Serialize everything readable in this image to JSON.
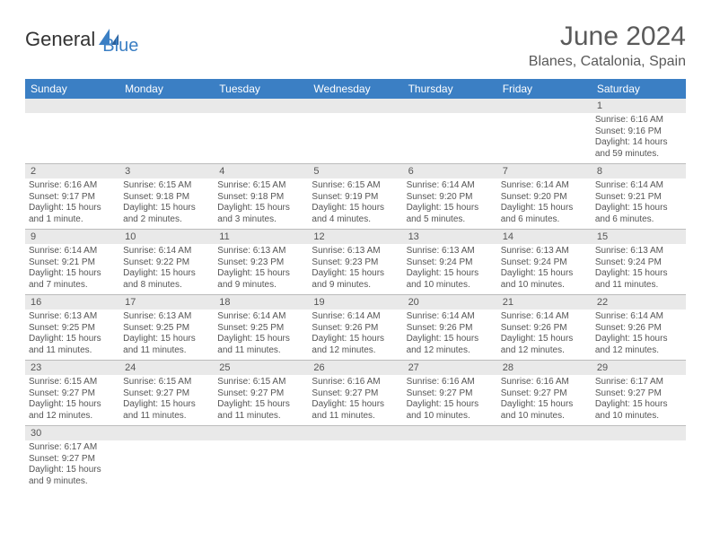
{
  "logo": {
    "general": "General",
    "blue": "Blue"
  },
  "title": "June 2024",
  "location": "Blanes, Catalonia, Spain",
  "colors": {
    "header_bg": "#3b7fc4",
    "header_text": "#ffffff",
    "daynum_bg": "#e9e9e9",
    "border": "#bcbcbc",
    "logo_blue": "#3b7fc4",
    "text": "#555555"
  },
  "dayNames": [
    "Sunday",
    "Monday",
    "Tuesday",
    "Wednesday",
    "Thursday",
    "Friday",
    "Saturday"
  ],
  "weeks": [
    [
      {
        "n": "",
        "lines": []
      },
      {
        "n": "",
        "lines": []
      },
      {
        "n": "",
        "lines": []
      },
      {
        "n": "",
        "lines": []
      },
      {
        "n": "",
        "lines": []
      },
      {
        "n": "",
        "lines": []
      },
      {
        "n": "1",
        "lines": [
          "Sunrise: 6:16 AM",
          "Sunset: 9:16 PM",
          "Daylight: 14 hours",
          "and 59 minutes."
        ]
      }
    ],
    [
      {
        "n": "2",
        "lines": [
          "Sunrise: 6:16 AM",
          "Sunset: 9:17 PM",
          "Daylight: 15 hours",
          "and 1 minute."
        ]
      },
      {
        "n": "3",
        "lines": [
          "Sunrise: 6:15 AM",
          "Sunset: 9:18 PM",
          "Daylight: 15 hours",
          "and 2 minutes."
        ]
      },
      {
        "n": "4",
        "lines": [
          "Sunrise: 6:15 AM",
          "Sunset: 9:18 PM",
          "Daylight: 15 hours",
          "and 3 minutes."
        ]
      },
      {
        "n": "5",
        "lines": [
          "Sunrise: 6:15 AM",
          "Sunset: 9:19 PM",
          "Daylight: 15 hours",
          "and 4 minutes."
        ]
      },
      {
        "n": "6",
        "lines": [
          "Sunrise: 6:14 AM",
          "Sunset: 9:20 PM",
          "Daylight: 15 hours",
          "and 5 minutes."
        ]
      },
      {
        "n": "7",
        "lines": [
          "Sunrise: 6:14 AM",
          "Sunset: 9:20 PM",
          "Daylight: 15 hours",
          "and 6 minutes."
        ]
      },
      {
        "n": "8",
        "lines": [
          "Sunrise: 6:14 AM",
          "Sunset: 9:21 PM",
          "Daylight: 15 hours",
          "and 6 minutes."
        ]
      }
    ],
    [
      {
        "n": "9",
        "lines": [
          "Sunrise: 6:14 AM",
          "Sunset: 9:21 PM",
          "Daylight: 15 hours",
          "and 7 minutes."
        ]
      },
      {
        "n": "10",
        "lines": [
          "Sunrise: 6:14 AM",
          "Sunset: 9:22 PM",
          "Daylight: 15 hours",
          "and 8 minutes."
        ]
      },
      {
        "n": "11",
        "lines": [
          "Sunrise: 6:13 AM",
          "Sunset: 9:23 PM",
          "Daylight: 15 hours",
          "and 9 minutes."
        ]
      },
      {
        "n": "12",
        "lines": [
          "Sunrise: 6:13 AM",
          "Sunset: 9:23 PM",
          "Daylight: 15 hours",
          "and 9 minutes."
        ]
      },
      {
        "n": "13",
        "lines": [
          "Sunrise: 6:13 AM",
          "Sunset: 9:24 PM",
          "Daylight: 15 hours",
          "and 10 minutes."
        ]
      },
      {
        "n": "14",
        "lines": [
          "Sunrise: 6:13 AM",
          "Sunset: 9:24 PM",
          "Daylight: 15 hours",
          "and 10 minutes."
        ]
      },
      {
        "n": "15",
        "lines": [
          "Sunrise: 6:13 AM",
          "Sunset: 9:24 PM",
          "Daylight: 15 hours",
          "and 11 minutes."
        ]
      }
    ],
    [
      {
        "n": "16",
        "lines": [
          "Sunrise: 6:13 AM",
          "Sunset: 9:25 PM",
          "Daylight: 15 hours",
          "and 11 minutes."
        ]
      },
      {
        "n": "17",
        "lines": [
          "Sunrise: 6:13 AM",
          "Sunset: 9:25 PM",
          "Daylight: 15 hours",
          "and 11 minutes."
        ]
      },
      {
        "n": "18",
        "lines": [
          "Sunrise: 6:14 AM",
          "Sunset: 9:25 PM",
          "Daylight: 15 hours",
          "and 11 minutes."
        ]
      },
      {
        "n": "19",
        "lines": [
          "Sunrise: 6:14 AM",
          "Sunset: 9:26 PM",
          "Daylight: 15 hours",
          "and 12 minutes."
        ]
      },
      {
        "n": "20",
        "lines": [
          "Sunrise: 6:14 AM",
          "Sunset: 9:26 PM",
          "Daylight: 15 hours",
          "and 12 minutes."
        ]
      },
      {
        "n": "21",
        "lines": [
          "Sunrise: 6:14 AM",
          "Sunset: 9:26 PM",
          "Daylight: 15 hours",
          "and 12 minutes."
        ]
      },
      {
        "n": "22",
        "lines": [
          "Sunrise: 6:14 AM",
          "Sunset: 9:26 PM",
          "Daylight: 15 hours",
          "and 12 minutes."
        ]
      }
    ],
    [
      {
        "n": "23",
        "lines": [
          "Sunrise: 6:15 AM",
          "Sunset: 9:27 PM",
          "Daylight: 15 hours",
          "and 12 minutes."
        ]
      },
      {
        "n": "24",
        "lines": [
          "Sunrise: 6:15 AM",
          "Sunset: 9:27 PM",
          "Daylight: 15 hours",
          "and 11 minutes."
        ]
      },
      {
        "n": "25",
        "lines": [
          "Sunrise: 6:15 AM",
          "Sunset: 9:27 PM",
          "Daylight: 15 hours",
          "and 11 minutes."
        ]
      },
      {
        "n": "26",
        "lines": [
          "Sunrise: 6:16 AM",
          "Sunset: 9:27 PM",
          "Daylight: 15 hours",
          "and 11 minutes."
        ]
      },
      {
        "n": "27",
        "lines": [
          "Sunrise: 6:16 AM",
          "Sunset: 9:27 PM",
          "Daylight: 15 hours",
          "and 10 minutes."
        ]
      },
      {
        "n": "28",
        "lines": [
          "Sunrise: 6:16 AM",
          "Sunset: 9:27 PM",
          "Daylight: 15 hours",
          "and 10 minutes."
        ]
      },
      {
        "n": "29",
        "lines": [
          "Sunrise: 6:17 AM",
          "Sunset: 9:27 PM",
          "Daylight: 15 hours",
          "and 10 minutes."
        ]
      }
    ],
    [
      {
        "n": "30",
        "lines": [
          "Sunrise: 6:17 AM",
          "Sunset: 9:27 PM",
          "Daylight: 15 hours",
          "and 9 minutes."
        ]
      },
      {
        "n": "",
        "lines": []
      },
      {
        "n": "",
        "lines": []
      },
      {
        "n": "",
        "lines": []
      },
      {
        "n": "",
        "lines": []
      },
      {
        "n": "",
        "lines": []
      },
      {
        "n": "",
        "lines": []
      }
    ]
  ]
}
